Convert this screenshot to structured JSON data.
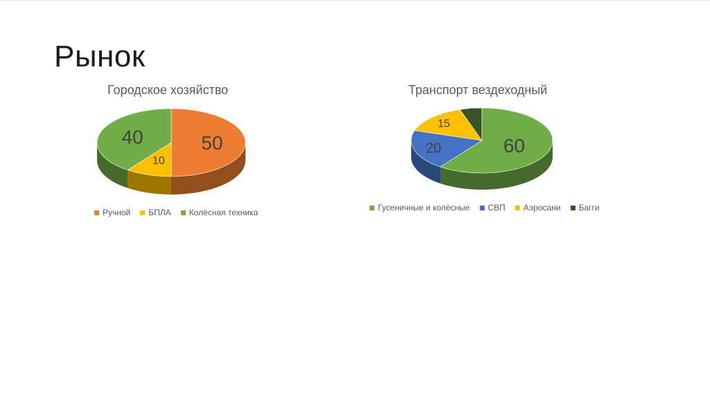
{
  "slide": {
    "title": "Рынок"
  },
  "chart_data": [
    {
      "type": "pie",
      "title": "Городское хозяйство",
      "categories": [
        "Ручной",
        "БПЛА",
        "Колёсная техника"
      ],
      "values": [
        50,
        10,
        40
      ],
      "colors": [
        "#ED7D31",
        "#FFC000",
        "#70AD47"
      ],
      "legend": "bottom",
      "style": "3d"
    },
    {
      "type": "pie",
      "title": "Транспорт вездеходный",
      "categories": [
        "Гусеничные и колёсные",
        "СВП",
        "Аэросани",
        "Багги"
      ],
      "values": [
        60,
        20,
        15,
        5
      ],
      "colors": [
        "#70AD47",
        "#4472C4",
        "#FFC000",
        "#375623"
      ],
      "legend": "bottom",
      "style": "3d"
    }
  ]
}
